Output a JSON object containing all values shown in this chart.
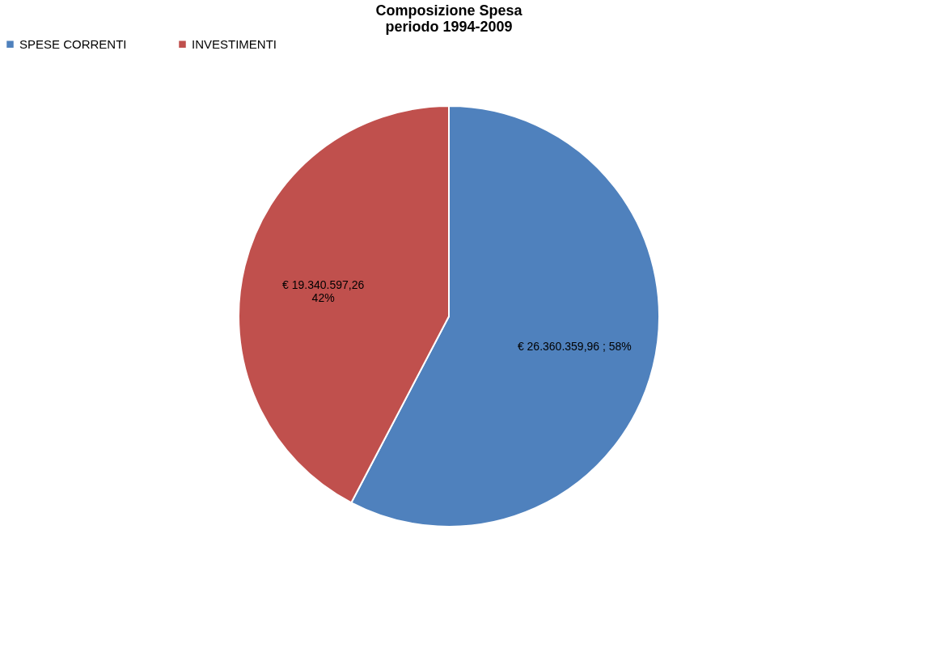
{
  "chart_data": {
    "type": "pie",
    "title": "Composizione Spesa\nperiodo 1994-2009",
    "categories": [
      "SPESE CORRENTI",
      "INVESTIMENTI"
    ],
    "values": [
      26360359.96,
      19340597.26
    ],
    "colors": [
      "#4f81bd",
      "#c0504d"
    ],
    "value_labels": [
      "€ 26.360.359,96 ; 58%",
      "€ 19.340.597,26\n42%"
    ],
    "legend": "top"
  }
}
